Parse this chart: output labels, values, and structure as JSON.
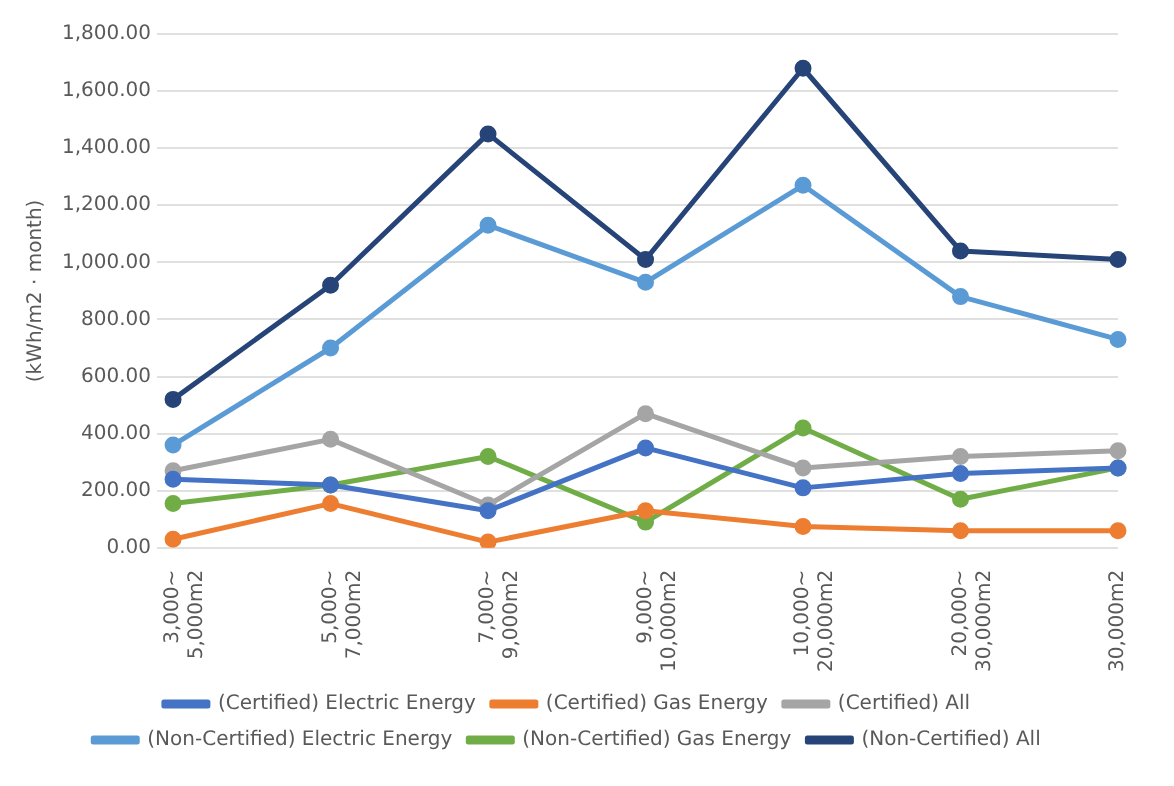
{
  "chart_data": {
    "type": "line",
    "ylabel": "(kWh/m2 · month)",
    "categories": [
      "3,000~\n5,000m2",
      "5,000~\n7,000m2",
      "7,000~\n9,000m2",
      "9,000~\n10,000m2",
      "10,000~\n20,000m2",
      "20,000~\n30,000m2",
      "30,000m2"
    ],
    "series": [
      {
        "name": "(Certified) Electric Energy",
        "color": "#4472c4",
        "values": [
          240,
          220,
          130,
          350,
          210,
          260,
          280
        ]
      },
      {
        "name": "(Certified) Gas Energy",
        "color": "#ed7d31",
        "values": [
          30,
          155,
          20,
          130,
          75,
          60,
          60
        ]
      },
      {
        "name": "(Certified) All",
        "color": "#a5a5a5",
        "values": [
          270,
          380,
          150,
          470,
          280,
          320,
          340
        ]
      },
      {
        "name": "(Non-Certified) Electric Energy",
        "color": "#5b9bd5",
        "values": [
          360,
          700,
          1130,
          930,
          1270,
          880,
          730
        ]
      },
      {
        "name": "(Non-Certified) Gas Energy",
        "color": "#70ad47",
        "values": [
          155,
          220,
          320,
          90,
          420,
          170,
          280
        ]
      },
      {
        "name": "(Non-Certified) All",
        "color": "#264478",
        "values": [
          520,
          920,
          1450,
          1010,
          1680,
          1040,
          1010
        ]
      }
    ],
    "ylim": [
      0,
      1800
    ],
    "yticks": [
      {
        "value": 0,
        "label": "0.00"
      },
      {
        "value": 200,
        "label": "200.00"
      },
      {
        "value": 400,
        "label": "400.00"
      },
      {
        "value": 600,
        "label": "600.00"
      },
      {
        "value": 800,
        "label": "800.00"
      },
      {
        "value": 1000,
        "label": "1,000.00"
      },
      {
        "value": 1200,
        "label": "1,200.00"
      },
      {
        "value": 1400,
        "label": "1,400.00"
      },
      {
        "value": 1600,
        "label": "1,600.00"
      },
      {
        "value": 1800,
        "label": "1,800.00"
      }
    ],
    "grid": "y",
    "legend": "bottom",
    "marker": "circle",
    "line_style": "solid"
  }
}
